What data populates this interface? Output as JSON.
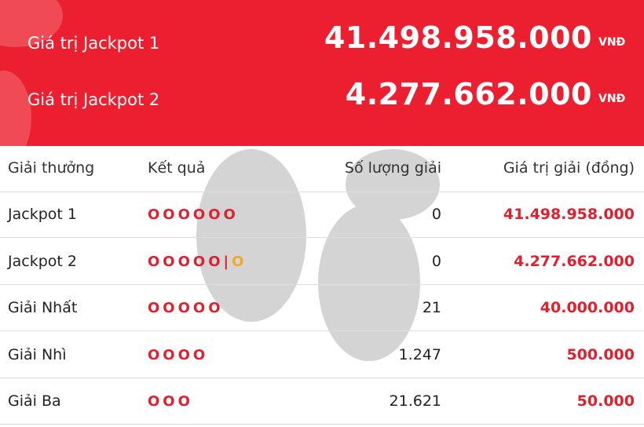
{
  "banner": {
    "rows": [
      {
        "label": "Giá trị Jackpot 1",
        "amount": "41.498.958.000",
        "currency": "VNĐ"
      },
      {
        "label": "Giá trị Jackpot 2",
        "amount": "4.277.662.000",
        "currency": "VNĐ"
      }
    ]
  },
  "table": {
    "header": [
      "Giải thưởng",
      "Kết quả",
      "Số lượng giải",
      "Giá trị giải (đồng)"
    ],
    "rows": [
      {
        "prize": "Jackpot 1",
        "result": "OOOOOO",
        "count": "0",
        "value": "41.498.958.000"
      },
      {
        "prize": "Jackpot 2",
        "result": "OOOOO",
        "separator": "|",
        "extra": "O",
        "count": "0",
        "value": "4.277.662.000"
      },
      {
        "prize": "Giải Nhất",
        "result": "OOOOO",
        "count": "21",
        "value": "40.000.000"
      },
      {
        "prize": "Giải Nhì",
        "result": "OOOO",
        "count": "1.247",
        "value": "500.000"
      },
      {
        "prize": "Giải Ba",
        "result": "OOO",
        "count": "21.621",
        "value": "50.000"
      }
    ]
  }
}
